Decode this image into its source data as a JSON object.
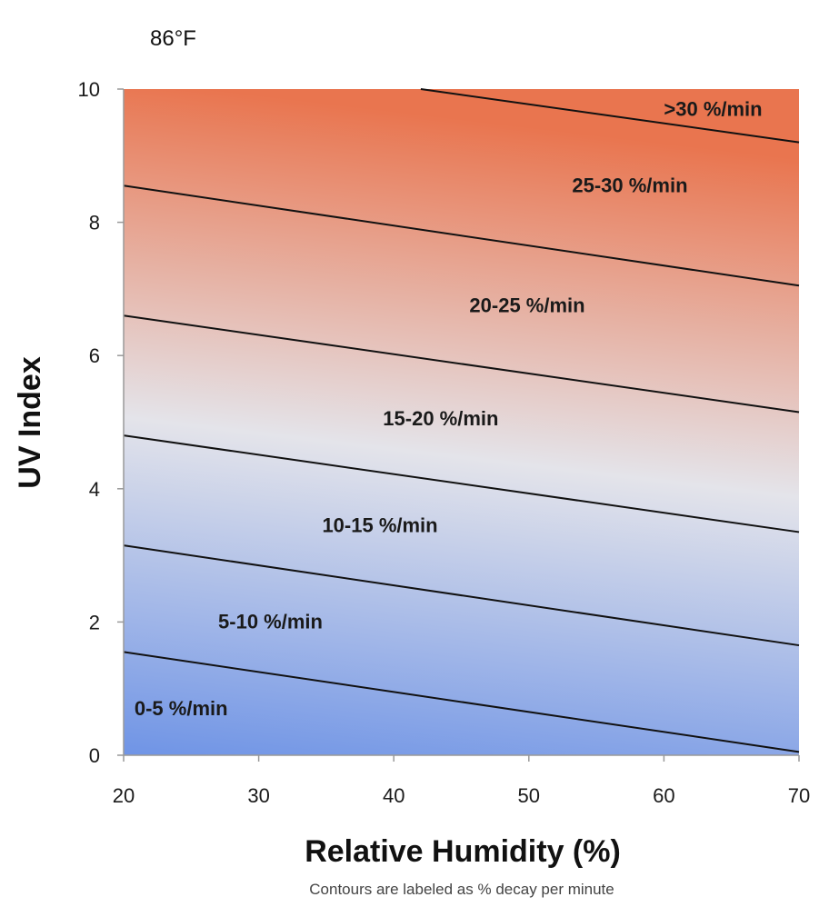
{
  "chart_data": {
    "type": "area",
    "title": "86°F",
    "xlabel": "Relative Humidity (%)",
    "ylabel": "UV Index",
    "footnote": "Contours are labeled as % decay per minute",
    "xlim": [
      20,
      70
    ],
    "ylim": [
      0,
      10
    ],
    "x_ticks": [
      "20",
      "30",
      "40",
      "50",
      "60",
      "70"
    ],
    "y_ticks": [
      "0",
      "2",
      "4",
      "6",
      "8",
      "10"
    ],
    "grid": false,
    "colors": {
      "low": "#6f94e6",
      "mid": "#e4e4ea",
      "high": "#e9754f"
    },
    "contours": [
      {
        "name": "5",
        "x": [
          20,
          70
        ],
        "y": [
          1.55,
          0.05
        ]
      },
      {
        "name": "10",
        "x": [
          20,
          70
        ],
        "y": [
          3.15,
          1.65
        ]
      },
      {
        "name": "15",
        "x": [
          20,
          70
        ],
        "y": [
          4.8,
          3.35
        ]
      },
      {
        "name": "20",
        "x": [
          20,
          70
        ],
        "y": [
          6.6,
          5.15
        ]
      },
      {
        "name": "25",
        "x": [
          20,
          70
        ],
        "y": [
          8.55,
          7.05
        ]
      },
      {
        "name": "30",
        "x": [
          42,
          70
        ],
        "y": [
          10.0,
          9.2
        ]
      }
    ],
    "regions": [
      {
        "label": "0-5 %/min",
        "x": 20.8,
        "y": 0.6
      },
      {
        "label": "5-10 %/min",
        "x": 27.0,
        "y": 1.9
      },
      {
        "label": "10-15 %/min",
        "x": 34.7,
        "y": 3.35
      },
      {
        "label": "15-20 %/min",
        "x": 39.2,
        "y": 4.95
      },
      {
        "label": "20-25 %/min",
        "x": 45.6,
        "y": 6.65
      },
      {
        "label": "25-30 %/min",
        "x": 53.2,
        "y": 8.45
      },
      {
        "label": ">30 %/min",
        "x": 60.0,
        "y": 9.6
      }
    ]
  }
}
